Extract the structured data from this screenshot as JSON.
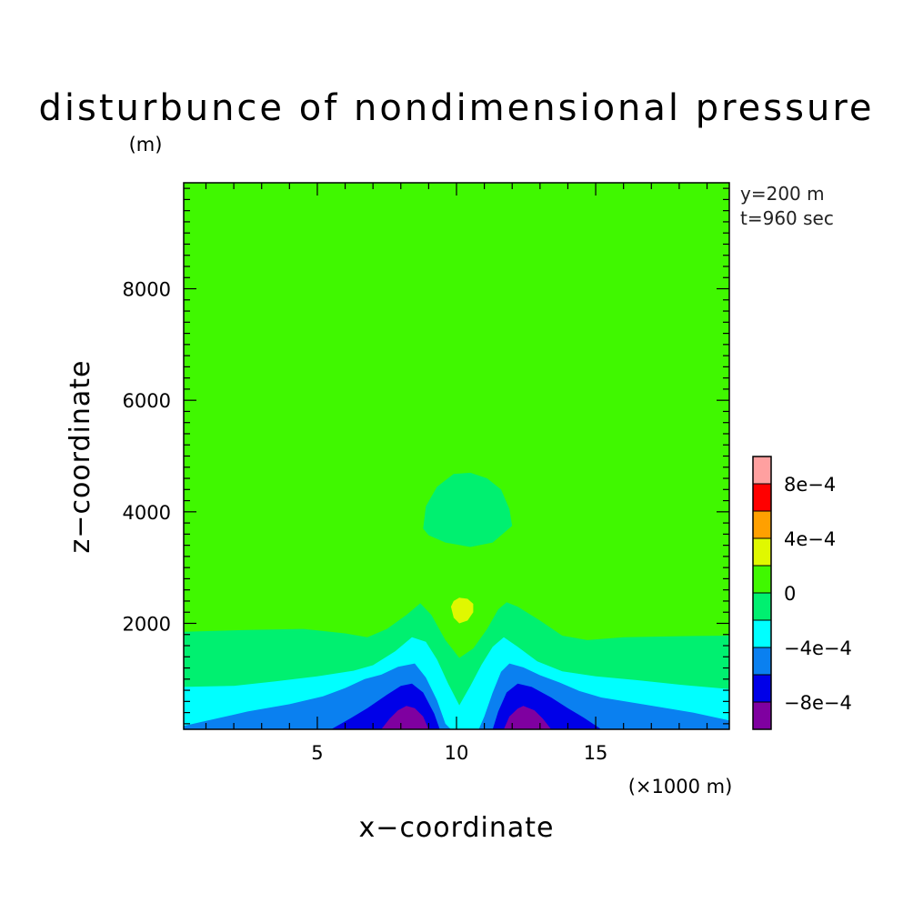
{
  "chart_data": {
    "type": "contour",
    "title": "disturbunce of nondimensional pressure",
    "ylabel": "z−coordinate",
    "yunit": "(m)",
    "xlabel": "x−coordinate",
    "xunit": "(×1000 m)",
    "annotations": [
      "y=200 m",
      "t=960 sec"
    ],
    "xlim": [
      0.2,
      19.8
    ],
    "ylim": [
      100,
      9900
    ],
    "xticks": [
      {
        "value": 5,
        "label": "5"
      },
      {
        "value": 10,
        "label": "10"
      },
      {
        "value": 15,
        "label": "15"
      }
    ],
    "yticks": [
      {
        "value": 2000,
        "label": "2000"
      },
      {
        "value": 4000,
        "label": "4000"
      },
      {
        "value": 6000,
        "label": "6000"
      },
      {
        "value": 8000,
        "label": "8000"
      }
    ],
    "colorbar": {
      "levels": [
        -0.001,
        -0.0008,
        -0.0006,
        -0.0004,
        -0.0002,
        0,
        0.0002,
        0.0004,
        0.0006,
        0.0008,
        0.001
      ],
      "colors": [
        "#7f00a0",
        "#0000e8",
        "#0a80f0",
        "#00ffff",
        "#00f070",
        "#40f800",
        "#e0f800",
        "#ffa000",
        "#ff0000",
        "#ffa0a0"
      ],
      "tick_labels": [
        {
          "value": -0.0008,
          "label": "−8e−4"
        },
        {
          "value": -0.0004,
          "label": "−4e−4"
        },
        {
          "value": 0,
          "label": "0"
        },
        {
          "value": 0.0004,
          "label": "4e−4"
        },
        {
          "value": 0.0008,
          "label": "8e−4"
        }
      ]
    },
    "background_level_color": "#40f800",
    "regions": [
      {
        "name": "dome-0-to-2e-4",
        "color": "#00f070",
        "points": [
          [
            8.8,
            3700
          ],
          [
            8.9,
            4100
          ],
          [
            9.3,
            4450
          ],
          [
            9.9,
            4680
          ],
          [
            10.5,
            4700
          ],
          [
            11.1,
            4600
          ],
          [
            11.6,
            4400
          ],
          [
            11.9,
            4050
          ],
          [
            12.0,
            3750
          ],
          [
            11.3,
            3450
          ],
          [
            10.5,
            3370
          ],
          [
            9.6,
            3450
          ],
          [
            9.0,
            3580
          ]
        ]
      },
      {
        "name": "band-0-to-2e-4",
        "color": "#00f070",
        "points": [
          [
            0.2,
            100
          ],
          [
            0.2,
            1850
          ],
          [
            2.5,
            1880
          ],
          [
            4.5,
            1900
          ],
          [
            6.0,
            1820
          ],
          [
            6.8,
            1750
          ],
          [
            7.5,
            1900
          ],
          [
            8.2,
            2150
          ],
          [
            8.7,
            2360
          ],
          [
            9.1,
            2150
          ],
          [
            9.6,
            1700
          ],
          [
            10.1,
            1380
          ],
          [
            10.6,
            1550
          ],
          [
            11.1,
            1900
          ],
          [
            11.5,
            2250
          ],
          [
            11.8,
            2380
          ],
          [
            12.2,
            2300
          ],
          [
            13.0,
            2050
          ],
          [
            13.8,
            1780
          ],
          [
            14.7,
            1700
          ],
          [
            16.0,
            1750
          ],
          [
            18.0,
            1770
          ],
          [
            19.8,
            1780
          ],
          [
            19.8,
            100
          ]
        ]
      },
      {
        "name": "band-minus2e-4-to-0",
        "color": "#00ffff",
        "points": [
          [
            0.2,
            100
          ],
          [
            0.2,
            860
          ],
          [
            2.0,
            880
          ],
          [
            3.5,
            960
          ],
          [
            5.0,
            1050
          ],
          [
            6.3,
            1150
          ],
          [
            7.0,
            1250
          ],
          [
            7.8,
            1500
          ],
          [
            8.4,
            1750
          ],
          [
            8.9,
            1670
          ],
          [
            9.3,
            1350
          ],
          [
            9.7,
            920
          ],
          [
            10.1,
            530
          ],
          [
            10.5,
            880
          ],
          [
            10.9,
            1260
          ],
          [
            11.3,
            1580
          ],
          [
            11.7,
            1750
          ],
          [
            12.2,
            1580
          ],
          [
            12.9,
            1320
          ],
          [
            13.8,
            1140
          ],
          [
            15.0,
            1050
          ],
          [
            16.5,
            980
          ],
          [
            18.0,
            900
          ],
          [
            19.8,
            820
          ],
          [
            19.8,
            100
          ]
        ]
      },
      {
        "name": "band-minus4e-4-to-minus2e-4",
        "color": "#0a80f0",
        "points": [
          [
            0.2,
            100
          ],
          [
            0.2,
            160
          ],
          [
            1.0,
            250
          ],
          [
            2.5,
            420
          ],
          [
            4.0,
            550
          ],
          [
            5.2,
            690
          ],
          [
            6.0,
            840
          ],
          [
            6.7,
            1000
          ],
          [
            7.3,
            1080
          ],
          [
            7.9,
            1220
          ],
          [
            8.5,
            1280
          ],
          [
            8.9,
            1030
          ],
          [
            9.3,
            620
          ],
          [
            9.6,
            200
          ],
          [
            9.8,
            100
          ],
          [
            10.8,
            100
          ],
          [
            11.0,
            330
          ],
          [
            11.3,
            760
          ],
          [
            11.6,
            1130
          ],
          [
            11.9,
            1280
          ],
          [
            12.4,
            1210
          ],
          [
            13.0,
            1070
          ],
          [
            13.7,
            940
          ],
          [
            14.4,
            790
          ],
          [
            15.2,
            670
          ],
          [
            16.8,
            540
          ],
          [
            18.5,
            400
          ],
          [
            19.8,
            260
          ],
          [
            19.8,
            100
          ]
        ]
      },
      {
        "name": "band-minus6e-4-to-minus4e-4",
        "color": "#0000e8",
        "points": [
          [
            5.5,
            100
          ],
          [
            6.2,
            300
          ],
          [
            6.8,
            480
          ],
          [
            7.5,
            720
          ],
          [
            8.0,
            880
          ],
          [
            8.4,
            920
          ],
          [
            8.8,
            760
          ],
          [
            9.2,
            380
          ],
          [
            9.4,
            100
          ],
          [
            11.3,
            100
          ],
          [
            11.5,
            420
          ],
          [
            11.8,
            760
          ],
          [
            12.2,
            920
          ],
          [
            12.7,
            860
          ],
          [
            13.4,
            670
          ],
          [
            14.0,
            480
          ],
          [
            14.6,
            300
          ],
          [
            15.2,
            100
          ]
        ]
      },
      {
        "name": "band-below-minus6e-4",
        "color": "#7f00a0",
        "points": [
          [
            7.3,
            100
          ],
          [
            7.6,
            290
          ],
          [
            7.9,
            440
          ],
          [
            8.2,
            520
          ],
          [
            8.5,
            480
          ],
          [
            8.8,
            330
          ],
          [
            9.0,
            100
          ],
          [
            11.7,
            100
          ],
          [
            11.9,
            330
          ],
          [
            12.2,
            470
          ],
          [
            12.4,
            520
          ],
          [
            12.8,
            440
          ],
          [
            13.1,
            290
          ],
          [
            13.4,
            100
          ]
        ]
      },
      {
        "name": "blob-2e-4-to-4e-4",
        "color": "#e0f800",
        "points": [
          [
            9.8,
            2300
          ],
          [
            9.9,
            2100
          ],
          [
            10.1,
            2000
          ],
          [
            10.4,
            2050
          ],
          [
            10.6,
            2200
          ],
          [
            10.6,
            2350
          ],
          [
            10.4,
            2440
          ],
          [
            10.1,
            2460
          ],
          [
            9.9,
            2400
          ]
        ]
      }
    ]
  }
}
